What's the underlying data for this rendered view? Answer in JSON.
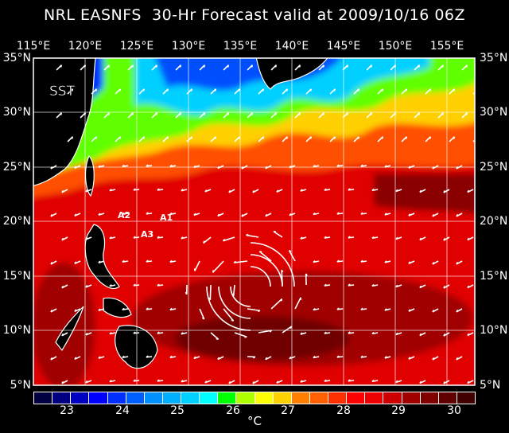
{
  "title": "NRL EASNFS  30-Hr Forecast valid at 2009/10/16 06Z",
  "lon_labels": [
    "115°E",
    "120°E",
    "125°E",
    "130°E",
    "135°E",
    "140°E",
    "145°E",
    "150°E",
    "155°E"
  ],
  "lat_labels": [
    "35°N",
    "30°N",
    "25°N",
    "20°N",
    "15°N",
    "10°N",
    "5°N"
  ],
  "field_label": "SST",
  "annotations": [
    "A1",
    "A2",
    "A3"
  ],
  "colorbar": {
    "ticks": [
      "23",
      "24",
      "25",
      "26",
      "27",
      "28",
      "29",
      "30"
    ],
    "unit": "°C",
    "colors": [
      "#000040",
      "#000080",
      "#0000c0",
      "#0000ff",
      "#0030ff",
      "#0060ff",
      "#0090ff",
      "#00b0ff",
      "#00d0ff",
      "#00ffff",
      "#00ff00",
      "#b0ff00",
      "#ffff00",
      "#ffd000",
      "#ff8000",
      "#ff6000",
      "#ff3000",
      "#ff0000",
      "#ee0000",
      "#cc0000",
      "#a00000",
      "#800000",
      "#600000",
      "#400000"
    ]
  },
  "colors": {
    "land": "#000000",
    "coast": "#ffffff",
    "grid": "#ffffff",
    "background": "#000000"
  }
}
